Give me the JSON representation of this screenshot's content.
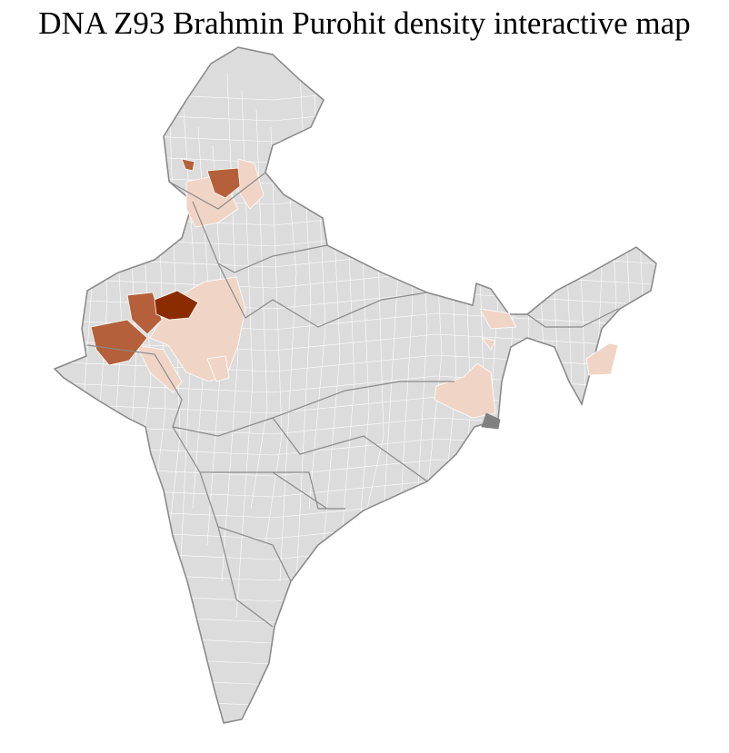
{
  "title": "DNA Z93 Brahmin Purohit density interactive map",
  "colors": {
    "base": "#dcdcdc",
    "district_border": "#ffffff",
    "state_border": "#8a8a8a",
    "low": "#f0d5c6",
    "medium": "#b5603a",
    "high": "#8b2c00",
    "islands": "#808080"
  }
}
